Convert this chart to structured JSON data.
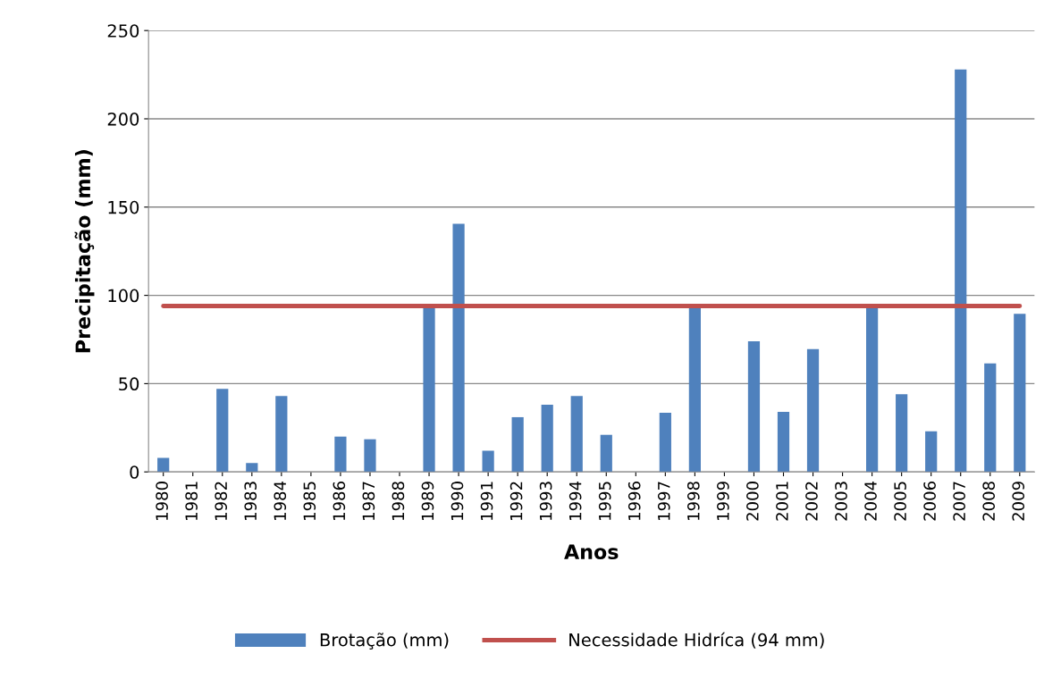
{
  "chart_data": {
    "type": "bar",
    "xlabel": "Anos",
    "ylabel": "Precipitação (mm)",
    "categories": [
      "1980",
      "1981",
      "1982",
      "1983",
      "1984",
      "1985",
      "1986",
      "1987",
      "1988",
      "1989",
      "1990",
      "1991",
      "1992",
      "1993",
      "1994",
      "1995",
      "1996",
      "1997",
      "1998",
      "1999",
      "2000",
      "2001",
      "2002",
      "2003",
      "2004",
      "2005",
      "2006",
      "2007",
      "2008",
      "2009"
    ],
    "series": [
      {
        "name": "Brotação (mm)",
        "color": "#4f81bd",
        "values": [
          8,
          0,
          47,
          5,
          43,
          0,
          20,
          18.5,
          0,
          94,
          140.5,
          12,
          31,
          38,
          43,
          21,
          0,
          33.5,
          94,
          0,
          74,
          34,
          69.5,
          0,
          94,
          44,
          23,
          228,
          61.5,
          89.5
        ]
      },
      {
        "name": "Necessidade Hidríca (94 mm)",
        "type": "line",
        "color": "#c0504d",
        "values": [
          94,
          94,
          94,
          94,
          94,
          94,
          94,
          94,
          94,
          94,
          94,
          94,
          94,
          94,
          94,
          94,
          94,
          94,
          94,
          94,
          94,
          94,
          94,
          94,
          94,
          94,
          94,
          94,
          94,
          94
        ]
      }
    ],
    "ylim": [
      0,
      250
    ],
    "yticks": [
      0,
      50,
      100,
      150,
      200,
      250
    ],
    "grid": "y",
    "legend": "bottom"
  }
}
